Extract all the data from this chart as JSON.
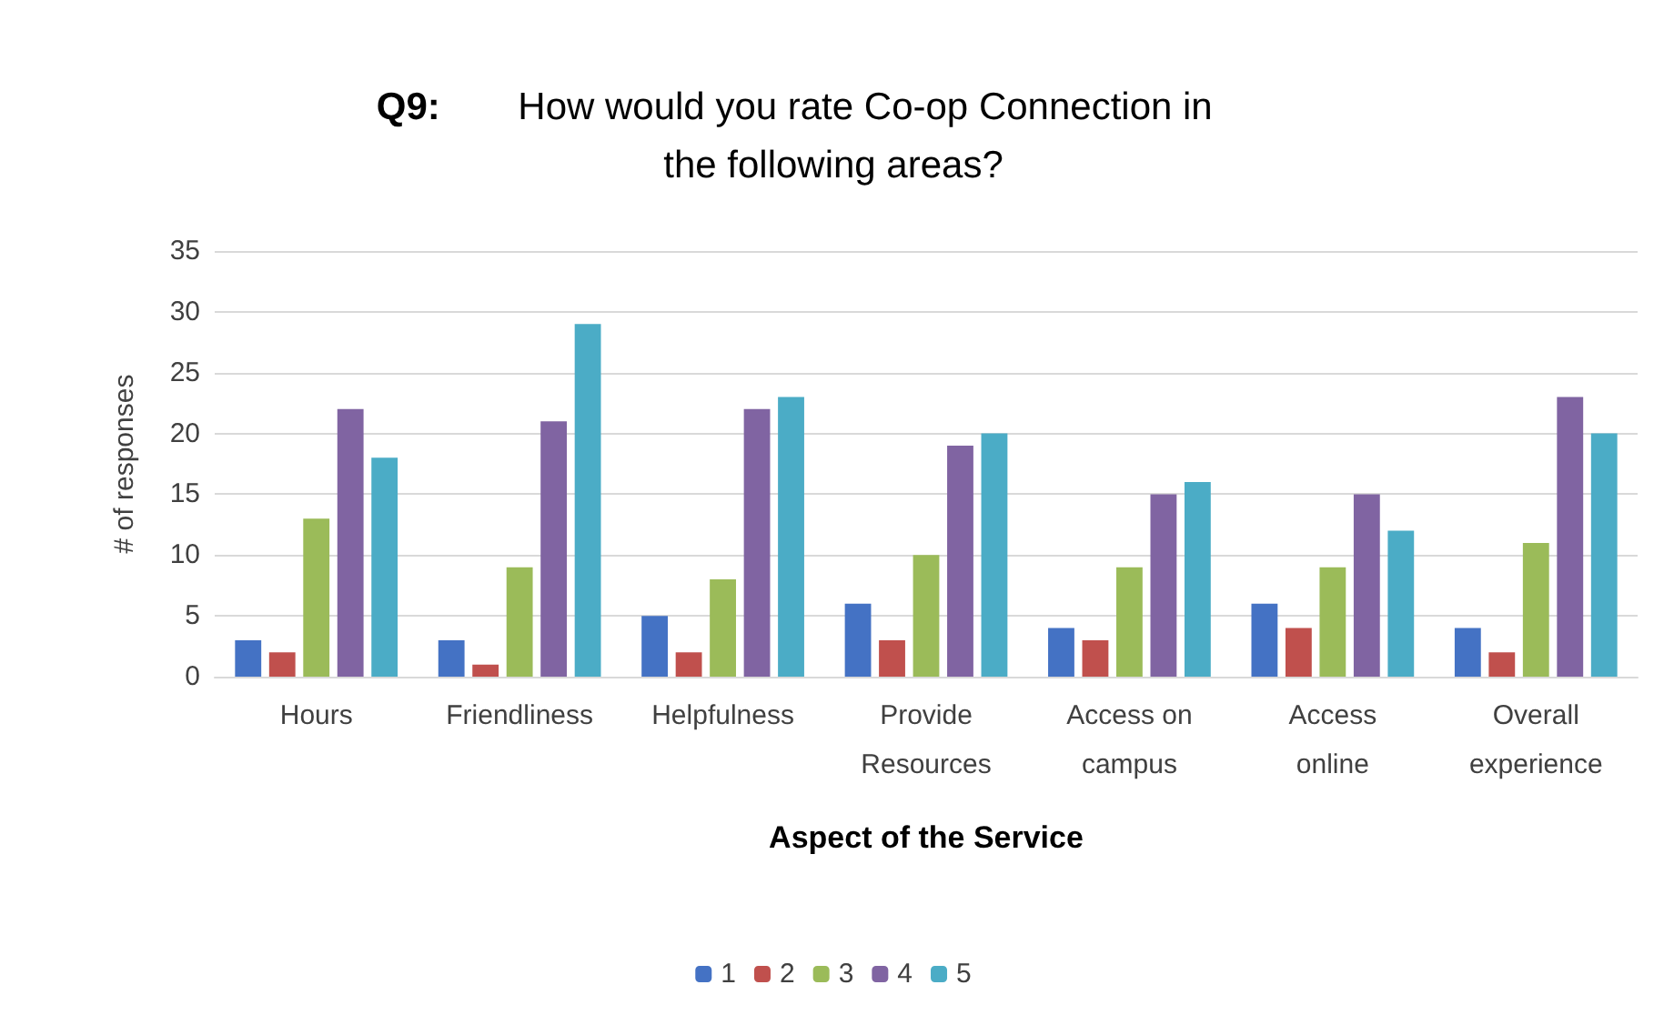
{
  "chart_data": {
    "type": "bar",
    "title": "Q9: How would you rate Co-op Connection in the following areas?",
    "xlabel": "Aspect of the Service",
    "ylabel": "# of responses",
    "categories": [
      "Hours",
      "Friendliness",
      "Helpfulness",
      "Provide\nResources",
      "Access on\ncampus",
      "Access\nonline",
      "Overall\nexperience"
    ],
    "series": [
      {
        "name": "1",
        "color": "#4472c4",
        "values": [
          3,
          3,
          5,
          6,
          4,
          6,
          4
        ]
      },
      {
        "name": "2",
        "color": "#c0504d",
        "values": [
          2,
          1,
          2,
          3,
          3,
          4,
          2
        ]
      },
      {
        "name": "3",
        "color": "#9bbb59",
        "values": [
          13,
          9,
          8,
          10,
          9,
          9,
          11
        ]
      },
      {
        "name": "4",
        "color": "#8064a2",
        "values": [
          22,
          21,
          22,
          19,
          15,
          15,
          23
        ]
      },
      {
        "name": "5",
        "color": "#4bacc6",
        "values": [
          18,
          29,
          23,
          20,
          16,
          12,
          20
        ]
      }
    ],
    "ylim": [
      0,
      35
    ],
    "yticks": [
      0,
      5,
      10,
      15,
      20,
      25,
      30,
      35
    ],
    "grid": "y",
    "legend": "bottom"
  }
}
